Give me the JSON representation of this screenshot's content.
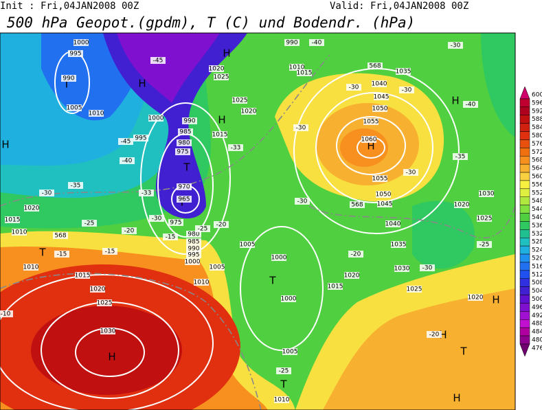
{
  "header": {
    "init": "Init : Fri,04JAN2008 00Z",
    "valid": "Valid: Fri,04JAN2008 00Z",
    "title": "500 hPa Geopot.(gpdm), T (C) und Bodendr. (hPa)"
  },
  "colorbar": {
    "levels": [
      600,
      596,
      592,
      588,
      584,
      580,
      576,
      572,
      568,
      564,
      560,
      556,
      552,
      548,
      544,
      540,
      536,
      532,
      528,
      524,
      520,
      516,
      512,
      508,
      504,
      500,
      496,
      492,
      488,
      484,
      480,
      476
    ],
    "colors": [
      "#d0006a",
      "#c00030",
      "#b00020",
      "#c01010",
      "#d02010",
      "#e03010",
      "#e85010",
      "#f07010",
      "#f89020",
      "#f8b030",
      "#f8d040",
      "#f8f040",
      "#e0f040",
      "#b0e840",
      "#80e040",
      "#50d040",
      "#30c860",
      "#20c090",
      "#20c0c0",
      "#20b0e0",
      "#2090f0",
      "#2070f0",
      "#2050f0",
      "#3030e0",
      "#4020d0",
      "#6010d0",
      "#8010d0",
      "#a010d0",
      "#c010d0",
      "#b000a0",
      "#900090",
      "#700070"
    ]
  },
  "map": {
    "labels": [
      "H",
      "H",
      "H",
      "H",
      "H",
      "H",
      "H",
      "H",
      "H",
      "H",
      "T",
      "T",
      "T",
      "T",
      "T",
      "T",
      "T",
      "995",
      "990",
      "1005",
      "1010",
      "1000",
      "995",
      "990",
      "985",
      "980",
      "975",
      "970",
      "965",
      "975",
      "980",
      "985",
      "990",
      "995",
      "1000",
      "1005",
      "1010",
      "1015",
      "1020",
      "1025",
      "1030",
      "1015",
      "1020",
      "1025",
      "1020",
      "1025",
      "1035",
      "1040",
      "1045",
      "1050",
      "1055",
      "1060",
      "1055",
      "1050",
      "1045",
      "1040",
      "1035",
      "1030",
      "1025",
      "1020",
      "1030",
      "1020",
      "1025",
      "1005",
      "1000",
      "1000",
      "1005",
      "1010",
      "1015",
      "1020",
      "990",
      "1010",
      "1015",
      "1010",
      "1015",
      "1020",
      "1010",
      "1000",
      "-40",
      "-30",
      "-40",
      "-45",
      "-45",
      "-40",
      "-35",
      "-30",
      "-33",
      "-30",
      "-25",
      "-20",
      "-15",
      "-15",
      "-15",
      "-25",
      "-20",
      "-33",
      "-30",
      "-30",
      "-30",
      "-35",
      "-30",
      "-30",
      "-25",
      "-20",
      "-30",
      "-20",
      "-25",
      "568",
      "568",
      "568",
      "-10"
    ]
  }
}
